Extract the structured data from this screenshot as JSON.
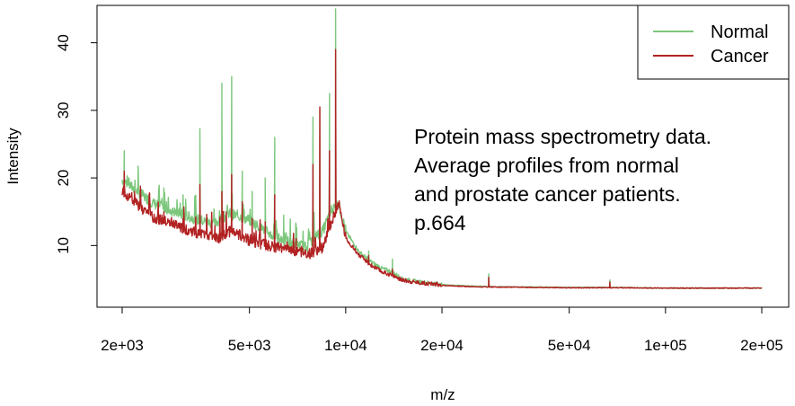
{
  "chart_data": {
    "type": "line",
    "xlabel": "m/z",
    "ylabel": "Intensity",
    "x_scale": "log",
    "xlim": [
      2000,
      200000
    ],
    "ylim": [
      3,
      45
    ],
    "x_ticks": [
      {
        "value": 2000,
        "label": "2e+03"
      },
      {
        "value": 5000,
        "label": "5e+03"
      },
      {
        "value": 10000,
        "label": "1e+04"
      },
      {
        "value": 20000,
        "label": "2e+04"
      },
      {
        "value": 50000,
        "label": "5e+04"
      },
      {
        "value": 100000,
        "label": "1e+05"
      },
      {
        "value": 200000,
        "label": "2e+05"
      }
    ],
    "y_ticks": [
      {
        "value": 10,
        "label": "10"
      },
      {
        "value": 20,
        "label": "20"
      },
      {
        "value": 30,
        "label": "30"
      },
      {
        "value": 40,
        "label": "40"
      }
    ],
    "legend_position": "top-right",
    "annotation": [
      "Protein mass spectrometry data.",
      "Average profiles from normal",
      "and prostate cancer patients.",
      "p.664"
    ],
    "series": [
      {
        "name": "Normal",
        "color": "#7cc77c",
        "baseline": [
          [
            2000,
            19.5
          ],
          [
            2200,
            18.0
          ],
          [
            2500,
            16.0
          ],
          [
            3000,
            14.5
          ],
          [
            3500,
            13.5
          ],
          [
            3900,
            13.0
          ],
          [
            4300,
            14.5
          ],
          [
            4700,
            14.0
          ],
          [
            5000,
            13.5
          ],
          [
            6000,
            11.0
          ],
          [
            7000,
            10.0
          ],
          [
            7500,
            9.5
          ],
          [
            8000,
            11.0
          ],
          [
            8500,
            12.0
          ],
          [
            9000,
            15.0
          ],
          [
            9500,
            16.0
          ],
          [
            10000,
            12.0
          ],
          [
            11000,
            9.0
          ],
          [
            12000,
            7.5
          ],
          [
            13000,
            6.5
          ],
          [
            14000,
            6.0
          ],
          [
            15000,
            5.0
          ],
          [
            17000,
            4.5
          ],
          [
            20000,
            4.2
          ],
          [
            25000,
            4.0
          ],
          [
            30000,
            3.9
          ],
          [
            50000,
            3.8
          ],
          [
            70000,
            3.8
          ],
          [
            100000,
            3.7
          ],
          [
            200000,
            3.7
          ]
        ],
        "peaks": [
          [
            2030,
            24.0
          ],
          [
            2700,
            18.5
          ],
          [
            3100,
            17.5
          ],
          [
            3500,
            27.3
          ],
          [
            4100,
            34.0
          ],
          [
            4400,
            35.0
          ],
          [
            4750,
            21.0
          ],
          [
            5100,
            18.0
          ],
          [
            5600,
            20.0
          ],
          [
            6000,
            26.0
          ],
          [
            6400,
            14.5
          ],
          [
            7000,
            13.0
          ],
          [
            7900,
            29.0
          ],
          [
            8300,
            30.0
          ],
          [
            8900,
            32.5
          ],
          [
            9300,
            45.0
          ],
          [
            11800,
            9.2
          ],
          [
            14000,
            8.0
          ],
          [
            28000,
            5.8
          ],
          [
            67000,
            4.9
          ]
        ]
      },
      {
        "name": "Cancer",
        "color": "#b22222",
        "baseline": [
          [
            2000,
            18.0
          ],
          [
            2200,
            16.0
          ],
          [
            2500,
            14.0
          ],
          [
            3000,
            12.5
          ],
          [
            3500,
            11.5
          ],
          [
            4000,
            10.8
          ],
          [
            4400,
            12.0
          ],
          [
            4800,
            11.0
          ],
          [
            5000,
            10.5
          ],
          [
            6000,
            9.5
          ],
          [
            7000,
            9.0
          ],
          [
            7700,
            8.5
          ],
          [
            8500,
            9.5
          ],
          [
            9000,
            13.0
          ],
          [
            9500,
            16.0
          ],
          [
            10000,
            11.0
          ],
          [
            11000,
            8.5
          ],
          [
            12000,
            7.0
          ],
          [
            13000,
            6.0
          ],
          [
            14000,
            5.5
          ],
          [
            15000,
            4.8
          ],
          [
            17000,
            4.4
          ],
          [
            20000,
            4.1
          ],
          [
            25000,
            3.9
          ],
          [
            30000,
            3.85
          ],
          [
            50000,
            3.75
          ],
          [
            70000,
            3.75
          ],
          [
            100000,
            3.7
          ],
          [
            200000,
            3.7
          ]
        ],
        "peaks": [
          [
            2030,
            21.0
          ],
          [
            2700,
            15.0
          ],
          [
            3100,
            14.0
          ],
          [
            3500,
            19.0
          ],
          [
            4100,
            18.0
          ],
          [
            4400,
            20.5
          ],
          [
            4750,
            16.5
          ],
          [
            5100,
            14.0
          ],
          [
            5600,
            13.5
          ],
          [
            6000,
            17.5
          ],
          [
            7000,
            11.0
          ],
          [
            7900,
            22.0
          ],
          [
            8300,
            30.5
          ],
          [
            8900,
            24.0
          ],
          [
            9300,
            39.0
          ],
          [
            11800,
            8.5
          ],
          [
            14000,
            6.5
          ],
          [
            28000,
            5.3
          ],
          [
            67000,
            4.6
          ]
        ]
      }
    ]
  }
}
